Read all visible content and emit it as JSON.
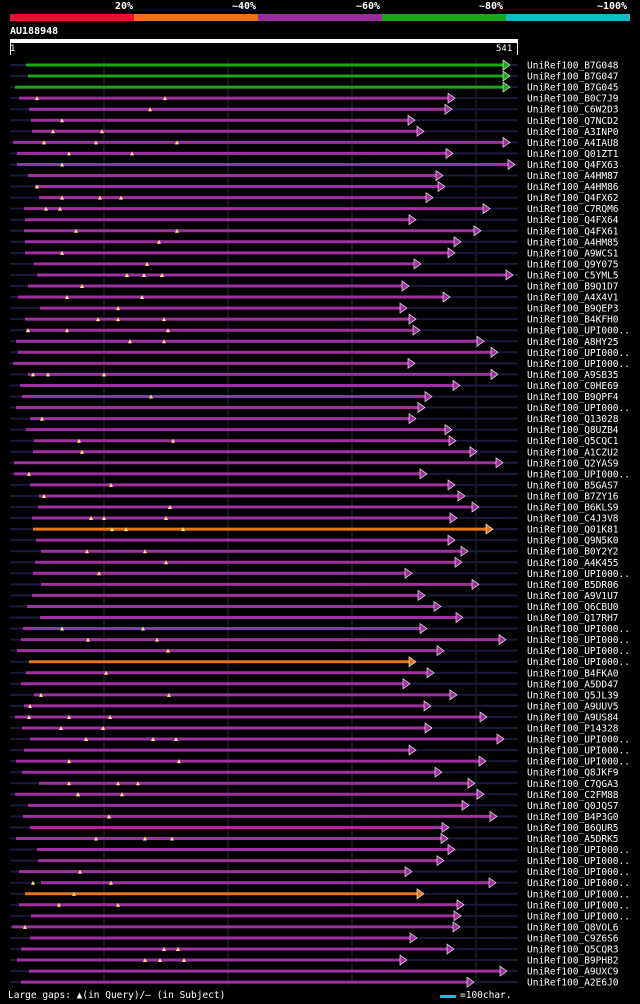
{
  "legend": [
    {
      "label": "20%",
      "color": "#e0142e"
    },
    {
      "label": "~40%",
      "color": "#e8741a"
    },
    {
      "label": "~60%",
      "color": "#9a2b9a"
    },
    {
      "label": "~80%",
      "color": "#1aa61a"
    },
    {
      "label": "~100%",
      "color": "#17b9c4"
    }
  ],
  "query": {
    "name": "AU188948",
    "start": "1",
    "end": "541"
  },
  "hits": [
    {
      "name": "UniRef100_B7G048",
      "color": "#1aa61a"
    },
    {
      "name": "UniRef100_B7G047",
      "color": "#1aa61a"
    },
    {
      "name": "UniRef100_B7G045",
      "color": "#1aa61a"
    },
    {
      "name": "UniRef100_B0C7J9",
      "color": "#a030a0"
    },
    {
      "name": "UniRef100_C6W2D3",
      "color": "#a030a0"
    },
    {
      "name": "UniRef100_Q7NCD2",
      "color": "#a030a0"
    },
    {
      "name": "UniRef100_A3INP0",
      "color": "#a030a0"
    },
    {
      "name": "UniRef100_A4IAU8",
      "color": "#a030a0"
    },
    {
      "name": "UniRef100_Q01ZT1",
      "color": "#a030a0"
    },
    {
      "name": "UniRef100_Q4FX63",
      "color": "#a030a0"
    },
    {
      "name": "UniRef100_A4HM87",
      "color": "#a030a0"
    },
    {
      "name": "UniRef100_A4HM86",
      "color": "#a030a0"
    },
    {
      "name": "UniRef100_Q4FX62",
      "color": "#a030a0"
    },
    {
      "name": "UniRef100_C7RQM6",
      "color": "#a030a0"
    },
    {
      "name": "UniRef100_Q4FX64",
      "color": "#a030a0"
    },
    {
      "name": "UniRef100_Q4FX61",
      "color": "#a030a0"
    },
    {
      "name": "UniRef100_A4HM85",
      "color": "#a030a0"
    },
    {
      "name": "UniRef100_A9WCS1",
      "color": "#a030a0"
    },
    {
      "name": "UniRef100_Q9Y075",
      "color": "#a030a0"
    },
    {
      "name": "UniRef100_C5YML5",
      "color": "#a030a0"
    },
    {
      "name": "UniRef100_B9Q1D7",
      "color": "#a030a0"
    },
    {
      "name": "UniRef100_A4X4V1",
      "color": "#a030a0"
    },
    {
      "name": "UniRef100_B9QEP3",
      "color": "#a030a0"
    },
    {
      "name": "UniRef100_B4KFH0",
      "color": "#a030a0"
    },
    {
      "name": "UniRef100_UPI000..",
      "color": "#a030a0"
    },
    {
      "name": "UniRef100_A8HY25",
      "color": "#a030a0"
    },
    {
      "name": "UniRef100_UPI000..",
      "color": "#a030a0"
    },
    {
      "name": "UniRef100_UPI000..",
      "color": "#a030a0"
    },
    {
      "name": "UniRef100_A9SB35",
      "color": "#a030a0"
    },
    {
      "name": "UniRef100_C0HE69",
      "color": "#a030a0"
    },
    {
      "name": "UniRef100_B9QPF4",
      "color": "#a030a0"
    },
    {
      "name": "UniRef100_UPI000..",
      "color": "#a030a0"
    },
    {
      "name": "UniRef100_Q13028",
      "color": "#a030a0"
    },
    {
      "name": "UniRef100_Q8UZB4",
      "color": "#a030a0"
    },
    {
      "name": "UniRef100_Q5CQC1",
      "color": "#a030a0"
    },
    {
      "name": "UniRef100_A1CZU2",
      "color": "#a030a0"
    },
    {
      "name": "UniRef100_Q2YAS9",
      "color": "#a030a0"
    },
    {
      "name": "UniRef100_UPI000..",
      "color": "#a030a0"
    },
    {
      "name": "UniRef100_B5GAS7",
      "color": "#a030a0"
    },
    {
      "name": "UniRef100_B7ZY16",
      "color": "#a030a0"
    },
    {
      "name": "UniRef100_B6KLS9",
      "color": "#a030a0"
    },
    {
      "name": "UniRef100_C4J3V8",
      "color": "#a030a0"
    },
    {
      "name": "UniRef100_Q01K81",
      "color": "#e8741a"
    },
    {
      "name": "UniRef100_Q9N5K0",
      "color": "#a030a0"
    },
    {
      "name": "UniRef100_B0Y2Y2",
      "color": "#a030a0"
    },
    {
      "name": "UniRef100_A4K455",
      "color": "#a030a0"
    },
    {
      "name": "UniRef100_UPI000..",
      "color": "#a030a0"
    },
    {
      "name": "UniRef100_B5DR06",
      "color": "#a030a0"
    },
    {
      "name": "UniRef100_A9V1U7",
      "color": "#a030a0"
    },
    {
      "name": "UniRef100_Q6CBU0",
      "color": "#a030a0"
    },
    {
      "name": "UniRef100_Q17RH7",
      "color": "#a030a0"
    },
    {
      "name": "UniRef100_UPI000..",
      "color": "#a030a0"
    },
    {
      "name": "UniRef100_UPI000..",
      "color": "#a030a0"
    },
    {
      "name": "UniRef100_UPI000..",
      "color": "#a030a0"
    },
    {
      "name": "UniRef100_UPI000..",
      "color": "#e8741a"
    },
    {
      "name": "UniRef100_B4FKA0",
      "color": "#a030a0"
    },
    {
      "name": "UniRef100_A5DD47",
      "color": "#a030a0"
    },
    {
      "name": "UniRef100_Q5JL39",
      "color": "#a030a0"
    },
    {
      "name": "UniRef100_A9UUV5",
      "color": "#a030a0"
    },
    {
      "name": "UniRef100_A9US84",
      "color": "#a030a0"
    },
    {
      "name": "UniRef100_P14328",
      "color": "#a030a0"
    },
    {
      "name": "UniRef100_UPI000..",
      "color": "#a030a0"
    },
    {
      "name": "UniRef100_UPI000..",
      "color": "#a030a0"
    },
    {
      "name": "UniRef100_UPI000..",
      "color": "#a030a0"
    },
    {
      "name": "UniRef100_Q8JKF9",
      "color": "#a030a0"
    },
    {
      "name": "UniRef100_C7QGA3",
      "color": "#a030a0"
    },
    {
      "name": "UniRef100_C2FM88",
      "color": "#a030a0"
    },
    {
      "name": "UniRef100_Q0JQS7",
      "color": "#a030a0"
    },
    {
      "name": "UniRef100_B4P3G0",
      "color": "#a030a0"
    },
    {
      "name": "UniRef100_B6QUR5",
      "color": "#a030a0"
    },
    {
      "name": "UniRef100_A5DRK5",
      "color": "#a030a0"
    },
    {
      "name": "UniRef100_UPI000..",
      "color": "#a030a0"
    },
    {
      "name": "UniRef100_UPI000..",
      "color": "#a030a0"
    },
    {
      "name": "UniRef100_UPI000..",
      "color": "#a030a0"
    },
    {
      "name": "UniRef100_UPI000..",
      "color": "#a030a0"
    },
    {
      "name": "UniRef100_UPI000..",
      "color": "#e8741a"
    },
    {
      "name": "UniRef100_UPI000..",
      "color": "#a030a0"
    },
    {
      "name": "UniRef100_UPI000..",
      "color": "#a030a0"
    },
    {
      "name": "UniRef100_Q8VOL6",
      "color": "#a030a0"
    },
    {
      "name": "UniRef100_C9Z6S6",
      "color": "#a030a0"
    },
    {
      "name": "UniRef100_Q5CQR3",
      "color": "#a030a0"
    },
    {
      "name": "UniRef100_B9PHB2",
      "color": "#a030a0"
    },
    {
      "name": "UniRef100_A9UXC9",
      "color": "#a030a0"
    },
    {
      "name": "UniRef100_A2E6J0",
      "color": "#a030a0"
    }
  ],
  "footer": {
    "gaps_text": "Large gaps: ▲(in Query)/– (in Subject)",
    "scale_text": "=100char."
  }
}
